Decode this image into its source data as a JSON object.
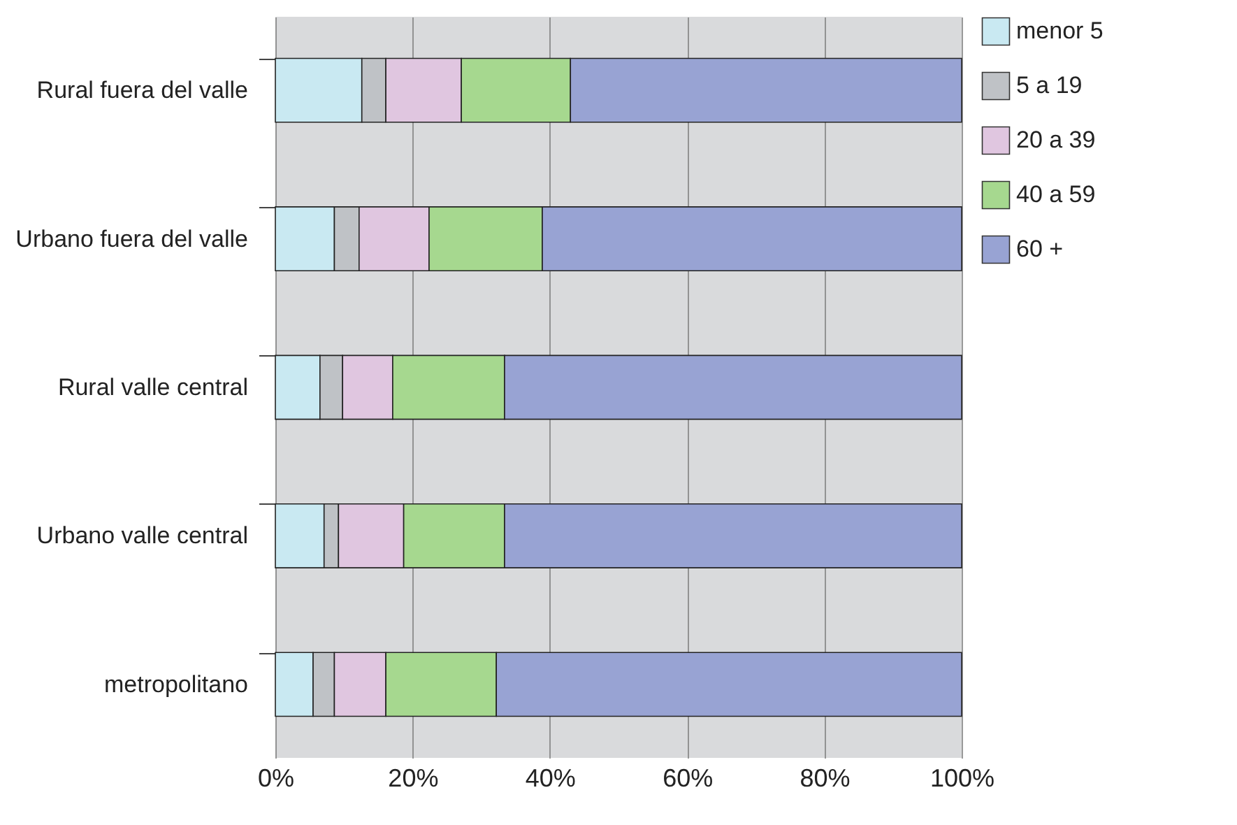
{
  "chart_data": {
    "type": "bar",
    "orientation": "horizontal",
    "stacked": true,
    "categories": [
      "Rural fuera del valle",
      "Urbano fuera del valle",
      "Rural valle central",
      "Urbano valle central",
      "metropolitano"
    ],
    "series": [
      {
        "name": "menor 5",
        "color": "#c9e9f2",
        "values": [
          12.6,
          8.6,
          6.5,
          7.1,
          5.5
        ]
      },
      {
        "name": "5 a 19",
        "color": "#bfc2c6",
        "values": [
          3.5,
          3.6,
          3.3,
          2.1,
          3.1
        ]
      },
      {
        "name": "20 a 39",
        "color": "#e0c6e0",
        "values": [
          11.0,
          10.2,
          7.3,
          9.5,
          7.5
        ]
      },
      {
        "name": "40 a 59",
        "color": "#a6d88f",
        "values": [
          15.9,
          16.5,
          16.3,
          14.7,
          16.1
        ]
      },
      {
        "name": "60 +",
        "color": "#98a3d3",
        "values": [
          57.0,
          61.1,
          66.6,
          66.6,
          67.8
        ]
      }
    ],
    "xlim": [
      0,
      100
    ],
    "xticks": [
      {
        "value": 0,
        "label": "0%"
      },
      {
        "value": 20,
        "label": "20%"
      },
      {
        "value": 40,
        "label": "40%"
      },
      {
        "value": 60,
        "label": "60%"
      },
      {
        "value": 80,
        "label": "80%"
      },
      {
        "value": 100,
        "label": "100%"
      }
    ],
    "grid": "x",
    "legend": "right"
  }
}
